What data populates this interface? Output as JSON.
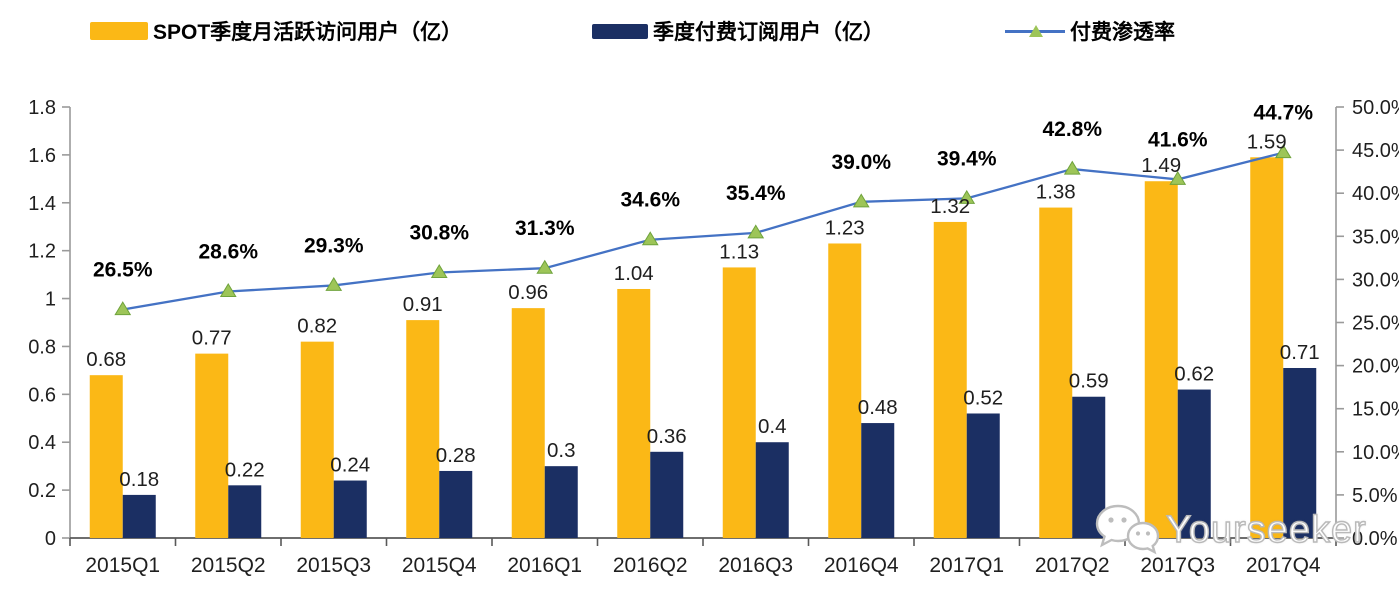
{
  "legend": {
    "mau_label": "SPOT季度月活跃访问用户（亿）",
    "subs_label": "季度付费订阅用户（亿）",
    "penetration_label": "付费渗透率"
  },
  "colors": {
    "mau_bar": "#FBB816",
    "subs_bar": "#1B2F63",
    "line": "#4472C4",
    "marker_fill": "#9DC558",
    "marker_stroke": "#6FA33C",
    "axis_side": "#9a9a9a",
    "axis_bottom": "#595959",
    "label_text": "#1f1f1f"
  },
  "watermark": {
    "text": "Yourseeker",
    "icon": "wechat-icon"
  },
  "chart_data": {
    "type": "bar",
    "subtype": "grouped-bars-with-line",
    "categories": [
      "2015Q1",
      "2015Q2",
      "2015Q3",
      "2015Q4",
      "2016Q1",
      "2016Q2",
      "2016Q3",
      "2016Q4",
      "2017Q1",
      "2017Q2",
      "2017Q3",
      "2017Q4"
    ],
    "series": [
      {
        "name": "SPOT季度月活跃访问用户（亿）",
        "type": "bar",
        "axis": "left",
        "values": [
          0.68,
          0.77,
          0.82,
          0.91,
          0.96,
          1.04,
          1.13,
          1.23,
          1.32,
          1.38,
          1.49,
          1.59
        ],
        "labels": [
          "0.68",
          "0.77",
          "0.82",
          "0.91",
          "0.96",
          "1.04",
          "1.13",
          "1.23",
          "1.32",
          "1.38",
          "1.49",
          "1.59"
        ]
      },
      {
        "name": "季度付费订阅用户（亿）",
        "type": "bar",
        "axis": "left",
        "values": [
          0.18,
          0.22,
          0.24,
          0.28,
          0.3,
          0.36,
          0.4,
          0.48,
          0.52,
          0.59,
          0.62,
          0.71
        ],
        "labels": [
          "0.18",
          "0.22",
          "0.24",
          "0.28",
          "0.3",
          "0.36",
          "0.4",
          "0.48",
          "0.52",
          "0.59",
          "0.62",
          "0.71"
        ]
      },
      {
        "name": "付费渗透率",
        "type": "line",
        "axis": "right",
        "values": [
          26.5,
          28.6,
          29.3,
          30.8,
          31.3,
          34.6,
          35.4,
          39.0,
          39.4,
          42.8,
          41.6,
          44.7
        ],
        "labels": [
          "26.5%",
          "28.6%",
          "29.3%",
          "30.8%",
          "31.3%",
          "34.6%",
          "35.4%",
          "39.0%",
          "39.4%",
          "42.8%",
          "41.6%",
          "44.7%"
        ]
      }
    ],
    "left_axis": {
      "min": 0,
      "max": 1.8,
      "ticks": [
        "0",
        "0.2",
        "0.4",
        "0.6",
        "0.8",
        "1",
        "1.2",
        "1.4",
        "1.6",
        "1.8"
      ]
    },
    "right_axis": {
      "min": 0,
      "max": 50,
      "ticks": [
        "0.0%",
        "5.0%",
        "10.0%",
        "15.0%",
        "20.0%",
        "25.0%",
        "30.0%",
        "35.0%",
        "40.0%",
        "45.0%",
        "50.0%"
      ]
    },
    "grid": false,
    "legend_position": "top",
    "title": ""
  }
}
